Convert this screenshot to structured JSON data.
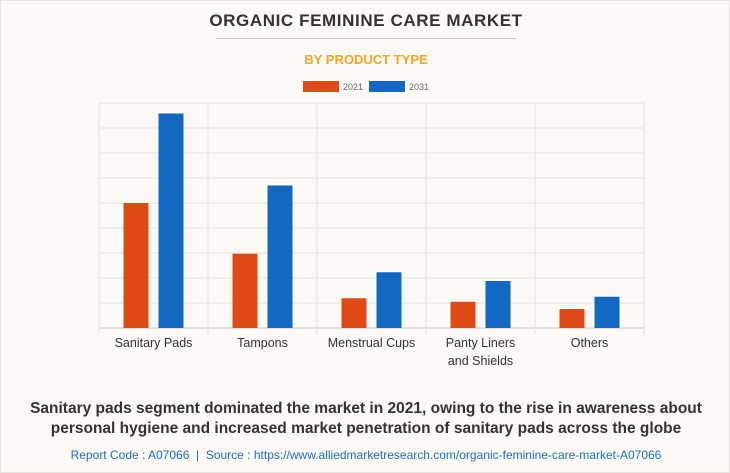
{
  "title": "ORGANIC FEMININE CARE MARKET",
  "subtitle": "BY PRODUCT TYPE",
  "colors": {
    "s2021": "#e04a17",
    "s2031": "#1368c2",
    "subtitle": "#f5a623"
  },
  "chart_data": {
    "type": "bar",
    "categories": [
      "Sanitary Pads",
      "Tampons",
      "Menstrual Cups",
      "Panty Liners and Shields",
      "Others"
    ],
    "category_lines": [
      [
        "Sanitary Pads"
      ],
      [
        "Tampons"
      ],
      [
        "Menstrual Cups"
      ],
      [
        "Panty Liners",
        "and Shields"
      ],
      [
        "Others"
      ]
    ],
    "series": [
      {
        "name": "2021",
        "values": [
          5.0,
          2.97,
          1.19,
          1.05,
          0.76
        ]
      },
      {
        "name": "2031",
        "values": [
          8.58,
          5.7,
          2.23,
          1.88,
          1.25
        ]
      }
    ],
    "ylim": [
      0,
      9
    ],
    "grid": true,
    "legend": "top-center",
    "xlabel": "",
    "ylabel": ""
  },
  "caption": {
    "line1": "Sanitary pads segment dominated the market in 2021, owing to the rise in awareness about",
    "line2": "personal hygiene and increased market penetration of sanitary pads across the globe"
  },
  "footer": "Report Code : A07066  |  Source : https://www.alliedmarketresearch.com/organic-feminine-care-market-A07066"
}
